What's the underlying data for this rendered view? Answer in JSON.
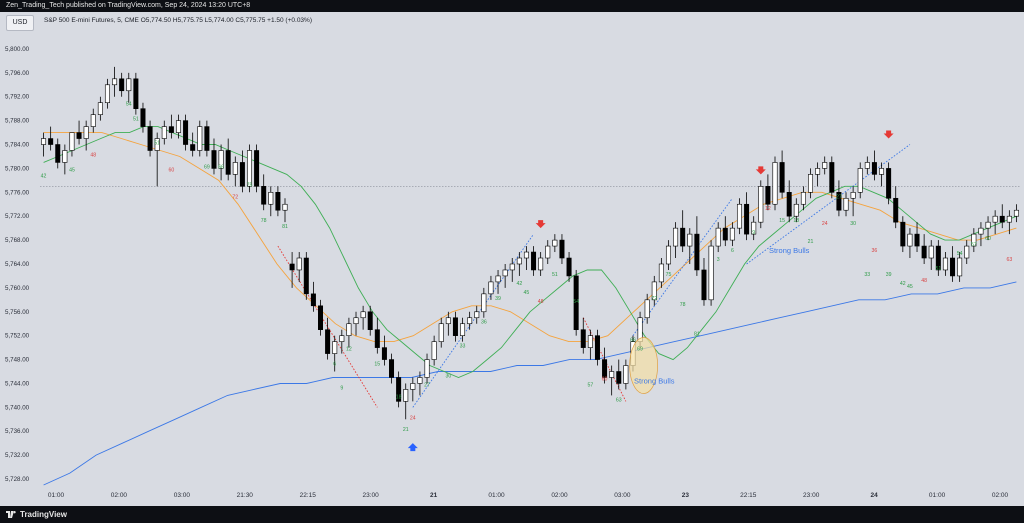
{
  "publisher_line": "Zen_Trading_Tech published on TradingView.com, Sep 24, 2024 13:20 UTC+8",
  "currency_button": "USD",
  "symbol_line": "S&P 500 E-mini Futures, 5, CME  O5,774.50  H5,775.75  L5,774.00  C5,775.75  +1.50 (+0.03%)",
  "brand": "TradingView",
  "colors": {
    "background": "#d8dbe2",
    "bull_candle": "#ffffff",
    "bear_candle": "#000000",
    "ema_fast": "#3fae55",
    "ema_mid": "#f5a33d",
    "ema_slow": "#3c78e6",
    "trend_bull": "#3c78e6",
    "trend_bear": "#e53935",
    "sell_arrow": "#e53935",
    "buy_arrow": "#2962ff",
    "label_green": "#2e9b47",
    "label_red": "#d84343"
  },
  "icons": {
    "sell_arrow": "arrow-down-icon",
    "buy_arrow": "arrow-up-icon",
    "logo": "tradingview-logo-icon"
  },
  "chart_data": {
    "type": "candlestick",
    "price_axis": {
      "ticks": [
        "5,800.00",
        "5,796.00",
        "5,792.00",
        "5,788.00",
        "5,784.00",
        "5,780.00",
        "5,776.00",
        "5,772.00",
        "5,768.00",
        "5,764.00",
        "5,760.00",
        "5,756.00",
        "5,752.00",
        "5,748.00",
        "5,744.00",
        "5,740.00",
        "5,736.00",
        "5,732.00",
        "5,728.00"
      ],
      "ylim": [
        5727,
        5802
      ]
    },
    "time_axis": {
      "ticks": [
        "01:00",
        "02:00",
        "03:00",
        "21:30",
        "22:15",
        "23:00",
        "21",
        "01:00",
        "02:00",
        "03:00",
        "23",
        "22:15",
        "23:00",
        "24",
        "01:00",
        "02:00"
      ]
    },
    "reference_line": 5777,
    "candles": [
      [
        5784,
        5786,
        5782,
        5785
      ],
      [
        5785,
        5787,
        5783,
        5784
      ],
      [
        5784,
        5785,
        5780,
        5781
      ],
      [
        5781,
        5784,
        5779,
        5783
      ],
      [
        5783,
        5786,
        5782,
        5786
      ],
      [
        5786,
        5788,
        5784,
        5785
      ],
      [
        5785,
        5788,
        5783,
        5787
      ],
      [
        5787,
        5790,
        5786,
        5789
      ],
      [
        5789,
        5792,
        5788,
        5791
      ],
      [
        5791,
        5795,
        5790,
        5794
      ],
      [
        5794,
        5797,
        5792,
        5795
      ],
      [
        5795,
        5796,
        5792,
        5793
      ],
      [
        5793,
        5796,
        5791,
        5795
      ],
      [
        5795,
        5796,
        5789,
        5790
      ],
      [
        5790,
        5791,
        5786,
        5787
      ],
      [
        5787,
        5788,
        5782,
        5783
      ],
      [
        5783,
        5786,
        5777,
        5785
      ],
      [
        5785,
        5788,
        5784,
        5787
      ],
      [
        5787,
        5789,
        5785,
        5786
      ],
      [
        5786,
        5789,
        5785,
        5788
      ],
      [
        5788,
        5789,
        5783,
        5784
      ],
      [
        5784,
        5786,
        5782,
        5783
      ],
      [
        5783,
        5788,
        5782,
        5787
      ],
      [
        5787,
        5788,
        5782,
        5783
      ],
      [
        5783,
        5785,
        5779,
        5780
      ],
      [
        5780,
        5784,
        5778,
        5783
      ],
      [
        5783,
        5785,
        5778,
        5779
      ],
      [
        5779,
        5782,
        5777,
        5781
      ],
      [
        5781,
        5783,
        5776,
        5777
      ],
      [
        5777,
        5784,
        5776,
        5783
      ],
      [
        5783,
        5784,
        5776,
        5777
      ],
      [
        5777,
        5779,
        5773,
        5774
      ],
      [
        5774,
        5777,
        5772,
        5776
      ],
      [
        5776,
        5777,
        5772,
        5773
      ],
      [
        5773,
        5775,
        5771,
        5774
      ],
      [
        5764,
        5766,
        5760,
        5763
      ],
      [
        5763,
        5766,
        5761,
        5765
      ],
      [
        5765,
        5766,
        5758,
        5759
      ],
      [
        5759,
        5761,
        5756,
        5757
      ],
      [
        5757,
        5758,
        5752,
        5753
      ],
      [
        5753,
        5755,
        5748,
        5749
      ],
      [
        5749,
        5752,
        5746,
        5751
      ],
      [
        5751,
        5753,
        5749,
        5752
      ],
      [
        5752,
        5755,
        5750,
        5754
      ],
      [
        5754,
        5756,
        5752,
        5755
      ],
      [
        5755,
        5757,
        5753,
        5756
      ],
      [
        5756,
        5757,
        5752,
        5753
      ],
      [
        5753,
        5755,
        5749,
        5750
      ],
      [
        5750,
        5752,
        5747,
        5748
      ],
      [
        5748,
        5749,
        5744,
        5745
      ],
      [
        5745,
        5746,
        5740,
        5741
      ],
      [
        5741,
        5744,
        5738,
        5743
      ],
      [
        5743,
        5745,
        5741,
        5744
      ],
      [
        5744,
        5746,
        5742,
        5745
      ],
      [
        5745,
        5749,
        5744,
        5748
      ],
      [
        5748,
        5752,
        5747,
        5751
      ],
      [
        5751,
        5755,
        5750,
        5754
      ],
      [
        5754,
        5756,
        5752,
        5755
      ],
      [
        5755,
        5756,
        5751,
        5752
      ],
      [
        5752,
        5755,
        5751,
        5754
      ],
      [
        5754,
        5756,
        5753,
        5755
      ],
      [
        5755,
        5757,
        5754,
        5756
      ],
      [
        5756,
        5760,
        5755,
        5759
      ],
      [
        5759,
        5762,
        5758,
        5761
      ],
      [
        5761,
        5763,
        5759,
        5762
      ],
      [
        5762,
        5764,
        5760,
        5763
      ],
      [
        5763,
        5765,
        5761,
        5764
      ],
      [
        5764,
        5766,
        5762,
        5765
      ],
      [
        5765,
        5767,
        5763,
        5766
      ],
      [
        5766,
        5767,
        5762,
        5763
      ],
      [
        5763,
        5766,
        5762,
        5765
      ],
      [
        5765,
        5768,
        5764,
        5767
      ],
      [
        5767,
        5769,
        5766,
        5768
      ],
      [
        5768,
        5769,
        5764,
        5765
      ],
      [
        5765,
        5766,
        5761,
        5762
      ],
      [
        5762,
        5763,
        5752,
        5753
      ],
      [
        5753,
        5755,
        5749,
        5750
      ],
      [
        5750,
        5753,
        5748,
        5752
      ],
      [
        5752,
        5753,
        5747,
        5748
      ],
      [
        5748,
        5750,
        5744,
        5745
      ],
      [
        5745,
        5747,
        5742,
        5746
      ],
      [
        5746,
        5748,
        5743,
        5744
      ],
      [
        5744,
        5748,
        5743,
        5747
      ],
      [
        5747,
        5752,
        5746,
        5751
      ],
      [
        5751,
        5756,
        5750,
        5755
      ],
      [
        5755,
        5759,
        5754,
        5758
      ],
      [
        5758,
        5762,
        5757,
        5761
      ],
      [
        5761,
        5765,
        5760,
        5764
      ],
      [
        5764,
        5768,
        5763,
        5767
      ],
      [
        5767,
        5771,
        5765,
        5770
      ],
      [
        5770,
        5773,
        5766,
        5767
      ],
      [
        5767,
        5770,
        5764,
        5769
      ],
      [
        5769,
        5772,
        5762,
        5763
      ],
      [
        5763,
        5765,
        5757,
        5758
      ],
      [
        5758,
        5768,
        5757,
        5767
      ],
      [
        5767,
        5771,
        5766,
        5770
      ],
      [
        5770,
        5772,
        5767,
        5768
      ],
      [
        5768,
        5771,
        5767,
        5770
      ],
      [
        5770,
        5775,
        5769,
        5774
      ],
      [
        5774,
        5776,
        5768,
        5769
      ],
      [
        5769,
        5772,
        5768,
        5771
      ],
      [
        5771,
        5778,
        5770,
        5777
      ],
      [
        5777,
        5779,
        5773,
        5774
      ],
      [
        5774,
        5782,
        5773,
        5781
      ],
      [
        5781,
        5783,
        5775,
        5776
      ],
      [
        5776,
        5778,
        5771,
        5772
      ],
      [
        5772,
        5775,
        5771,
        5774
      ],
      [
        5774,
        5777,
        5773,
        5776
      ],
      [
        5776,
        5780,
        5775,
        5779
      ],
      [
        5779,
        5781,
        5777,
        5780
      ],
      [
        5780,
        5782,
        5779,
        5781
      ],
      [
        5781,
        5782,
        5775,
        5776
      ],
      [
        5776,
        5778,
        5772,
        5773
      ],
      [
        5773,
        5776,
        5772,
        5775
      ],
      [
        5775,
        5777,
        5772,
        5776
      ],
      [
        5776,
        5781,
        5775,
        5780
      ],
      [
        5780,
        5782,
        5779,
        5781
      ],
      [
        5781,
        5783,
        5778,
        5779
      ],
      [
        5779,
        5781,
        5777,
        5780
      ],
      [
        5780,
        5781,
        5774,
        5775
      ],
      [
        5775,
        5777,
        5770,
        5771
      ],
      [
        5771,
        5772,
        5766,
        5767
      ],
      [
        5767,
        5770,
        5765,
        5769
      ],
      [
        5769,
        5771,
        5766,
        5767
      ],
      [
        5767,
        5769,
        5764,
        5765
      ],
      [
        5765,
        5768,
        5763,
        5767
      ],
      [
        5767,
        5768,
        5762,
        5763
      ],
      [
        5763,
        5766,
        5762,
        5765
      ],
      [
        5765,
        5767,
        5761,
        5762
      ],
      [
        5762,
        5766,
        5761,
        5765
      ],
      [
        5765,
        5768,
        5764,
        5767
      ],
      [
        5767,
        5770,
        5766,
        5769
      ],
      [
        5769,
        5771,
        5767,
        5770
      ],
      [
        5770,
        5772,
        5768,
        5771
      ],
      [
        5771,
        5773,
        5769,
        5772
      ],
      [
        5772,
        5774,
        5770,
        5771
      ],
      [
        5771,
        5773,
        5769,
        5772
      ],
      [
        5772,
        5774,
        5771,
        5773
      ]
    ],
    "ema_fast": [
      5781,
      5782,
      5783,
      5784,
      5785,
      5786,
      5786,
      5787,
      5787,
      5786,
      5785,
      5784,
      5784,
      5783,
      5782,
      5781,
      5780,
      5779,
      5777,
      5774,
      5770,
      5765,
      5760,
      5756,
      5753,
      5751,
      5749,
      5747,
      5746,
      5745,
      5746,
      5748,
      5750,
      5753,
      5756,
      5758,
      5760,
      5762,
      5763,
      5763,
      5760,
      5756,
      5752,
      5749,
      5748,
      5750,
      5753,
      5756,
      5760,
      5764,
      5767,
      5769,
      5771,
      5773,
      5775,
      5776,
      5777,
      5777,
      5776,
      5775,
      5773,
      5771,
      5769,
      5768,
      5768,
      5769,
      5770,
      5771,
      5772
    ],
    "ema_mid": [
      5786,
      5786,
      5786,
      5786,
      5785,
      5784,
      5783,
      5782,
      5780,
      5778,
      5774,
      5769,
      5764,
      5760,
      5757,
      5754,
      5752,
      5751,
      5751,
      5752,
      5754,
      5756,
      5757,
      5757,
      5756,
      5754,
      5752,
      5751,
      5751,
      5752,
      5755,
      5758,
      5761,
      5764,
      5767,
      5770,
      5772,
      5774,
      5775,
      5776,
      5776,
      5775,
      5774,
      5773,
      5771,
      5770,
      5769,
      5768,
      5768,
      5769,
      5770
    ],
    "ema_slow": [
      5727,
      5729,
      5732,
      5734,
      5736,
      5738,
      5740,
      5742,
      5743,
      5744,
      5744,
      5745,
      5745,
      5745,
      5745,
      5746,
      5746,
      5746,
      5747,
      5747,
      5748,
      5748,
      5749,
      5750,
      5751,
      5752,
      5753,
      5754,
      5755,
      5756,
      5757,
      5758,
      5758,
      5759,
      5759,
      5760,
      5760,
      5761
    ],
    "candle_labels": [
      {
        "text": "42",
        "i": 0,
        "p": 5778.5,
        "c": "green"
      },
      {
        "text": "45",
        "i": 4,
        "p": 5779.5,
        "c": "green"
      },
      {
        "text": "48",
        "i": 7,
        "p": 5782.0,
        "c": "red"
      },
      {
        "text": "54",
        "i": 12,
        "p": 5790.5,
        "c": "green"
      },
      {
        "text": "51",
        "i": 13,
        "p": 5788.0,
        "c": "green"
      },
      {
        "text": "51",
        "i": 16,
        "p": 5784.0,
        "c": "green"
      },
      {
        "text": "60",
        "i": 18,
        "p": 5779.5,
        "c": "red"
      },
      {
        "text": "69",
        "i": 23,
        "p": 5780.0,
        "c": "green"
      },
      {
        "text": "66",
        "i": 25,
        "p": 5780.0,
        "c": "green"
      },
      {
        "text": "72",
        "i": 27,
        "p": 5775.0,
        "c": "red"
      },
      {
        "text": "75",
        "i": 29,
        "p": 5777.0,
        "c": "green"
      },
      {
        "text": "78",
        "i": 31,
        "p": 5771.0,
        "c": "green"
      },
      {
        "text": "81",
        "i": 34,
        "p": 5770.0,
        "c": "green"
      },
      {
        "text": "6",
        "i": 41,
        "p": 5747.0,
        "c": "green"
      },
      {
        "text": "9",
        "i": 42,
        "p": 5743.0,
        "c": "green"
      },
      {
        "text": "12",
        "i": 43,
        "p": 5749.5,
        "c": "green"
      },
      {
        "text": "15",
        "i": 47,
        "p": 5747.0,
        "c": "green"
      },
      {
        "text": "18",
        "i": 50,
        "p": 5741.5,
        "c": "green"
      },
      {
        "text": "21",
        "i": 51,
        "p": 5736.0,
        "c": "green"
      },
      {
        "text": "24",
        "i": 52,
        "p": 5738.0,
        "c": "red"
      },
      {
        "text": "27",
        "i": 54,
        "p": 5743.5,
        "c": "green"
      },
      {
        "text": "30",
        "i": 57,
        "p": 5745.0,
        "c": "green"
      },
      {
        "text": "33",
        "i": 59,
        "p": 5750.0,
        "c": "green"
      },
      {
        "text": "36",
        "i": 62,
        "p": 5754.0,
        "c": "green"
      },
      {
        "text": "39",
        "i": 64,
        "p": 5758.0,
        "c": "green"
      },
      {
        "text": "42",
        "i": 67,
        "p": 5760.5,
        "c": "green"
      },
      {
        "text": "45",
        "i": 68,
        "p": 5759.0,
        "c": "green"
      },
      {
        "text": "48",
        "i": 70,
        "p": 5757.5,
        "c": "red"
      },
      {
        "text": "51",
        "i": 72,
        "p": 5762.0,
        "c": "green"
      },
      {
        "text": "54",
        "i": 75,
        "p": 5757.5,
        "c": "green"
      },
      {
        "text": "57",
        "i": 77,
        "p": 5743.5,
        "c": "green"
      },
      {
        "text": "60",
        "i": 79,
        "p": 5744.5,
        "c": "red"
      },
      {
        "text": "63",
        "i": 81,
        "p": 5741.0,
        "c": "green"
      },
      {
        "text": "66",
        "i": 83,
        "p": 5751.0,
        "c": "green"
      },
      {
        "text": "69",
        "i": 84,
        "p": 5749.5,
        "c": "green"
      },
      {
        "text": "72",
        "i": 86,
        "p": 5758.0,
        "c": "green"
      },
      {
        "text": "75",
        "i": 88,
        "p": 5762.0,
        "c": "green"
      },
      {
        "text": "78",
        "i": 90,
        "p": 5757.0,
        "c": "green"
      },
      {
        "text": "81",
        "i": 92,
        "p": 5752.0,
        "c": "green"
      },
      {
        "text": "3",
        "i": 95,
        "p": 5764.5,
        "c": "green"
      },
      {
        "text": "6",
        "i": 97,
        "p": 5766.0,
        "c": "green"
      },
      {
        "text": "9",
        "i": 100,
        "p": 5769.0,
        "c": "green"
      },
      {
        "text": "12",
        "i": 102,
        "p": 5773.0,
        "c": "red"
      },
      {
        "text": "15",
        "i": 104,
        "p": 5771.0,
        "c": "green"
      },
      {
        "text": "18",
        "i": 106,
        "p": 5771.0,
        "c": "green"
      },
      {
        "text": "21",
        "i": 108,
        "p": 5767.5,
        "c": "green"
      },
      {
        "text": "24",
        "i": 110,
        "p": 5770.5,
        "c": "red"
      },
      {
        "text": "27",
        "i": 112,
        "p": 5775.0,
        "c": "green"
      },
      {
        "text": "30",
        "i": 114,
        "p": 5770.5,
        "c": "green"
      },
      {
        "text": "33",
        "i": 116,
        "p": 5762.0,
        "c": "green"
      },
      {
        "text": "36",
        "i": 117,
        "p": 5766.0,
        "c": "red"
      },
      {
        "text": "39",
        "i": 119,
        "p": 5762.0,
        "c": "green"
      },
      {
        "text": "42",
        "i": 121,
        "p": 5760.5,
        "c": "green"
      },
      {
        "text": "45",
        "i": 122,
        "p": 5760.0,
        "c": "green"
      },
      {
        "text": "48",
        "i": 124,
        "p": 5761.0,
        "c": "red"
      },
      {
        "text": "51",
        "i": 126,
        "p": 5763.0,
        "c": "green"
      },
      {
        "text": "54",
        "i": 129,
        "p": 5765.5,
        "c": "green"
      },
      {
        "text": "57",
        "i": 131,
        "p": 5767.0,
        "c": "green"
      },
      {
        "text": "60",
        "i": 133,
        "p": 5768.0,
        "c": "green"
      },
      {
        "text": "63",
        "i": 136,
        "p": 5764.5,
        "c": "red"
      }
    ],
    "annotations": [
      {
        "text": "Strong Bulls",
        "i": 105,
        "p": 5765.8
      },
      {
        "text": "Strong Bulls",
        "i": 86,
        "p": 5744.0
      }
    ],
    "sell_arrows": [
      {
        "i": 70,
        "p": 5770.5
      },
      {
        "i": 101,
        "p": 5779.5
      },
      {
        "i": 119,
        "p": 5785.5
      }
    ],
    "buy_arrows": [
      {
        "i": 52,
        "p": 5733.5
      }
    ]
  }
}
